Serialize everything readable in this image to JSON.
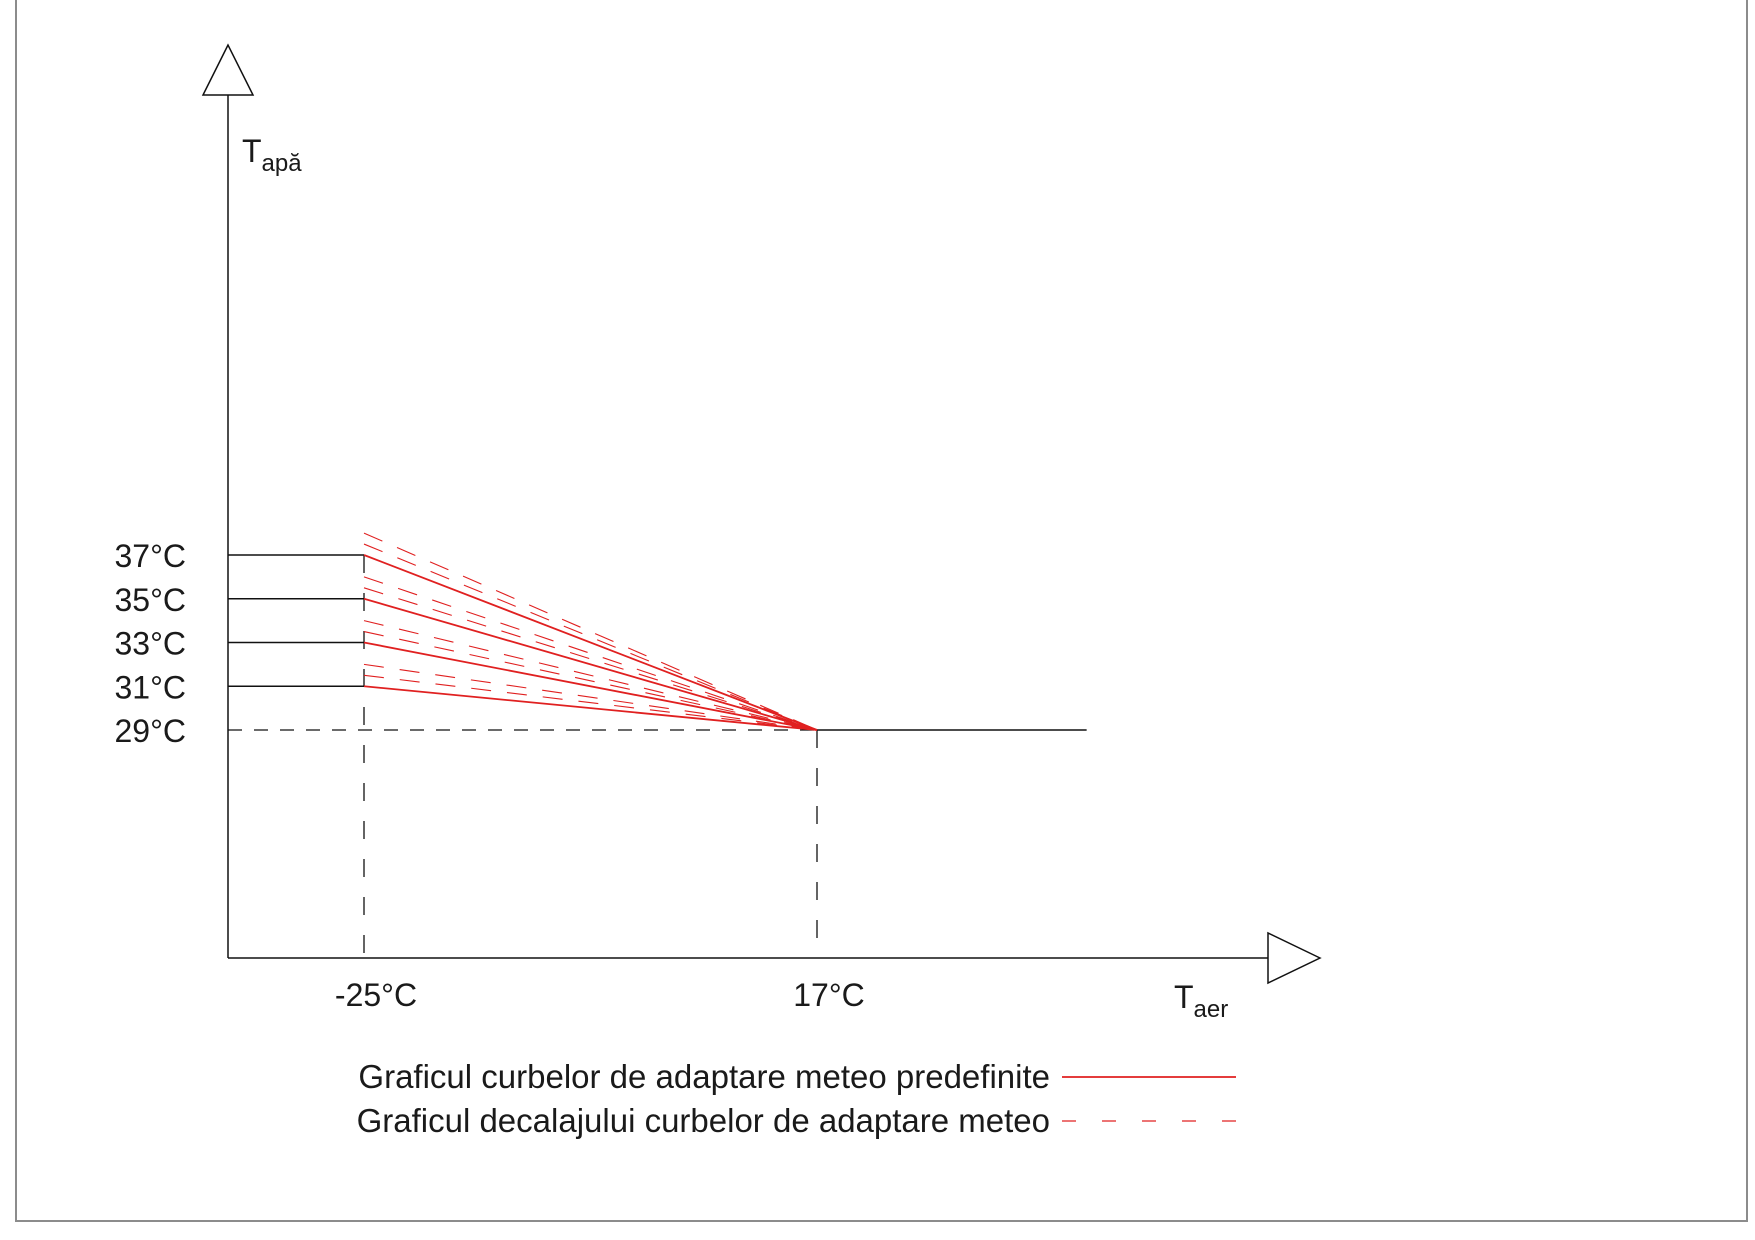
{
  "chart_data": {
    "type": "line",
    "xlabel": {
      "main": "T",
      "sub": "aer"
    },
    "ylabel": {
      "main": "T",
      "sub": "apă"
    },
    "x_ticks": [
      -25,
      17
    ],
    "x_tick_labels": [
      "-25°C",
      "17°C"
    ],
    "y_ticks": [
      29,
      31,
      33,
      35,
      37
    ],
    "y_tick_labels": [
      "29°C",
      "31°C",
      "33°C",
      "35°C",
      "37°C"
    ],
    "ylim": [
      5,
      37
    ],
    "grid": false,
    "legend_position": "bottom",
    "series": [
      {
        "name": "Graficul curbelor de adaptare meteo predefinite",
        "style": "solid",
        "color": "#e02020",
        "curves": [
          {
            "x": [
              -25,
              17
            ],
            "y": [
              37,
              29
            ]
          },
          {
            "x": [
              -25,
              17
            ],
            "y": [
              35,
              29
            ]
          },
          {
            "x": [
              -25,
              17
            ],
            "y": [
              33,
              29
            ]
          },
          {
            "x": [
              -25,
              17
            ],
            "y": [
              31,
              29
            ]
          }
        ]
      },
      {
        "name": "Graficul decalajului curbelor de adaptare meteo",
        "style": "dashed",
        "color": "#e02020",
        "offsets": [
          0.5,
          1
        ]
      }
    ],
    "flat_segments": {
      "left_levels": [
        37,
        35,
        33,
        31
      ],
      "right_level": 29,
      "right_end_x": 42
    }
  }
}
